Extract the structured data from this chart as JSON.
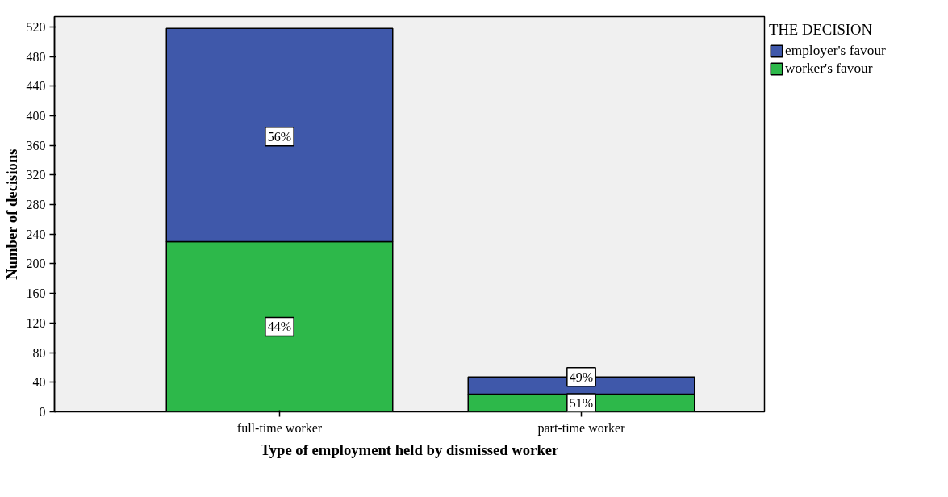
{
  "chart_data": {
    "type": "bar",
    "stacked": true,
    "xlabel": "Type of employment held by dismissed worker",
    "ylabel": "Number of decisions",
    "legend_title": "THE DECISION",
    "legend": "top right",
    "categories": [
      "full-time worker",
      "part-time worker"
    ],
    "series": [
      {
        "name": "worker's favour",
        "color": "#2db84a",
        "values": [
          230,
          24
        ]
      },
      {
        "name": "employer's favour",
        "color": "#3f58aa",
        "values": [
          288,
          23
        ]
      }
    ],
    "annotations": [
      {
        "text": "44%",
        "x": "full-time worker",
        "y": 115
      },
      {
        "text": "56%",
        "x": "full-time worker",
        "y": 372
      },
      {
        "text": "51%",
        "x": "part-time worker",
        "y": 12
      },
      {
        "text": "49%",
        "x": "part-time worker",
        "y": 47
      }
    ],
    "ylim": [
      0,
      534
    ],
    "yticks": [
      0,
      40,
      80,
      120,
      160,
      200,
      240,
      280,
      320,
      360,
      400,
      440,
      480,
      520
    ],
    "grid": false
  }
}
